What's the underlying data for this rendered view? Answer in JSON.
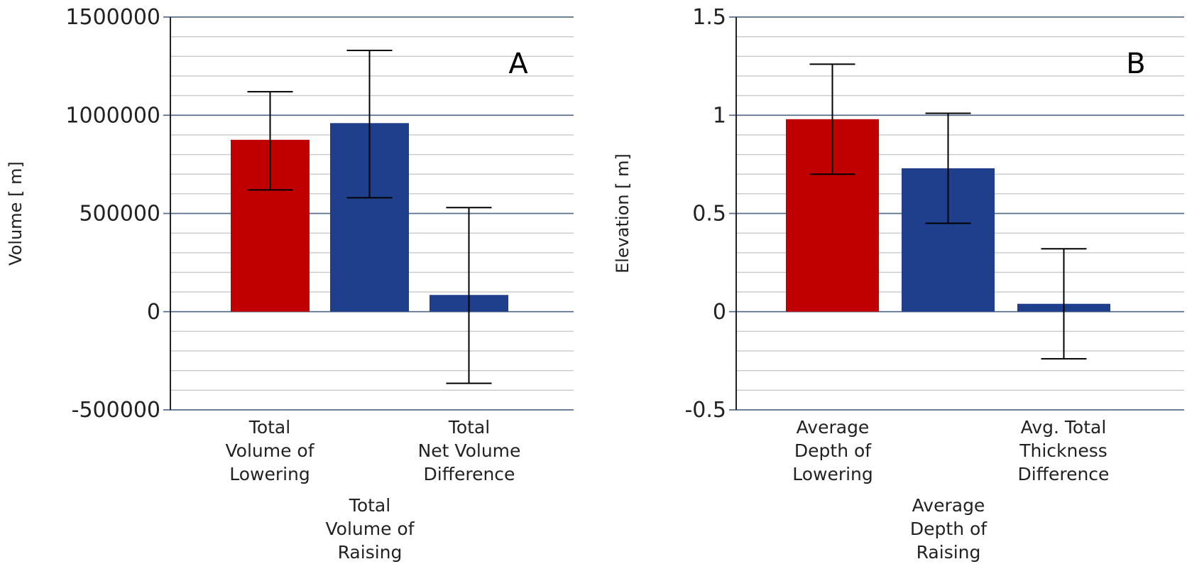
{
  "chart_data": [
    {
      "type": "bar",
      "panel_label": "A",
      "ylabel": "Volume [ m]",
      "ylim": [
        -500000,
        1500000
      ],
      "yticks": [
        -500000,
        0,
        500000,
        1000000,
        1500000
      ],
      "ytick_labels": [
        "-500000",
        "0",
        "500000",
        "1000000",
        "1500000"
      ],
      "categories": [
        [
          "Total",
          "Volume of",
          "Lowering"
        ],
        [
          "Total",
          "Volume of",
          "Raising"
        ],
        [
          "Total",
          "Net Volume",
          "Difference"
        ]
      ],
      "values": [
        875000,
        960000,
        85000
      ],
      "error_low": [
        620000,
        580000,
        -365000
      ],
      "error_high": [
        1120000,
        1330000,
        530000
      ],
      "colors": [
        "#c00000",
        "#1f3f8c",
        "#1f3f8c"
      ]
    },
    {
      "type": "bar",
      "panel_label": "B",
      "ylabel": "Elevation [ m]",
      "ylim": [
        -0.5,
        1.5
      ],
      "yticks": [
        -0.5,
        0,
        0.5,
        1,
        1.5
      ],
      "ytick_labels": [
        "-0.5",
        "0",
        "0.5",
        "1",
        "1.5"
      ],
      "categories": [
        [
          "Average",
          "Depth of",
          "Lowering"
        ],
        [
          "Average",
          "Depth of",
          "Raising"
        ],
        [
          "Avg. Total",
          "Thickness",
          "Difference"
        ]
      ],
      "values": [
        0.98,
        0.73,
        0.04
      ],
      "error_low": [
        0.7,
        0.45,
        -0.24
      ],
      "error_high": [
        1.26,
        1.01,
        0.32
      ],
      "colors": [
        "#c00000",
        "#1f3f8c",
        "#1f3f8c"
      ]
    }
  ]
}
